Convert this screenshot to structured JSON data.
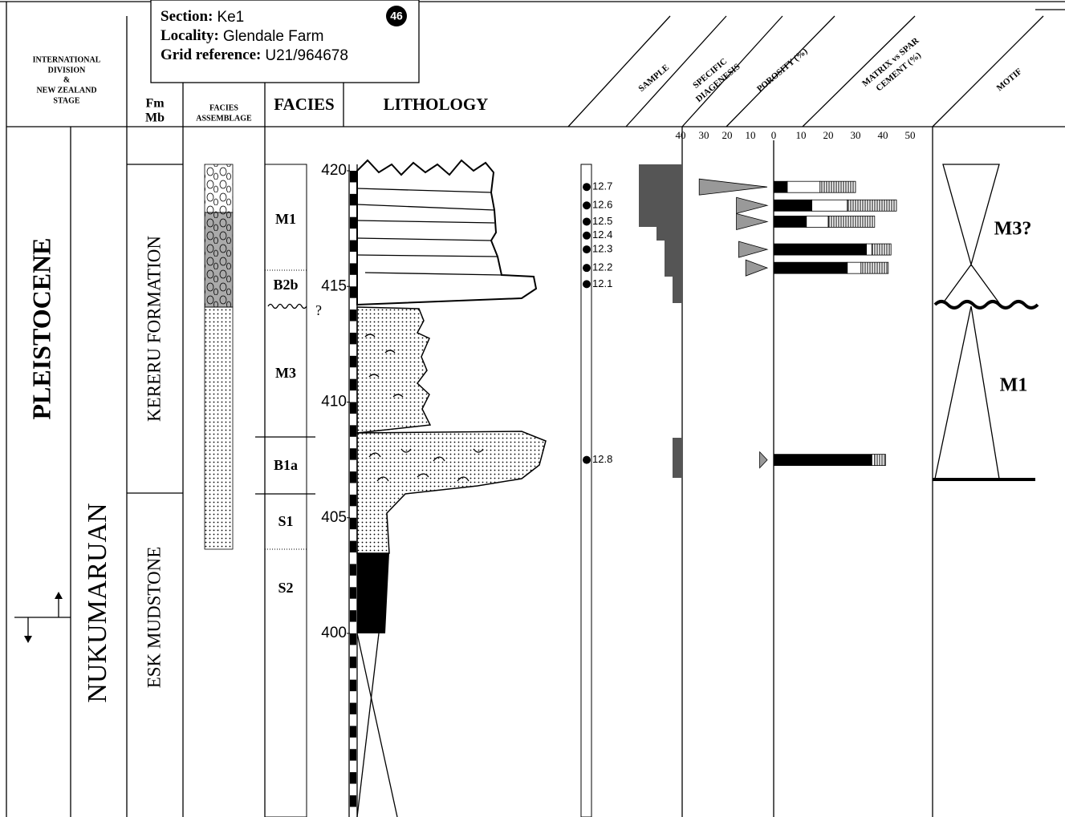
{
  "header": {
    "section": {
      "label": "Section:",
      "value": "Ke1"
    },
    "locality": {
      "label": "Locality:",
      "value": "Glendale Farm"
    },
    "grid_reference": {
      "label": "Grid reference:",
      "value": "U21/964678"
    },
    "number": "46"
  },
  "columns": {
    "division": [
      "INTERNATIONAL",
      "DIVISION",
      "&",
      "NEW ZEALAND",
      "STAGE"
    ],
    "fm_mb": [
      "Fm",
      "Mb"
    ],
    "facies_assemblage": [
      "FACIES",
      "ASSEMBLAGE"
    ],
    "facies": "FACIES",
    "lithology": "LITHOLOGY",
    "sample": "SAMPLE",
    "diagenesis": [
      "SPECIFIC",
      "DIAGENESIS"
    ],
    "porosity": "POROSITY (%)",
    "matrix": [
      "MATRIX vs SPAR",
      "CEMENT (%)"
    ],
    "motif": "MOTIF"
  },
  "units": {
    "series": "PLEISTOCENE",
    "stage": "NUKUMARUAN",
    "formations": [
      "KERERU FORMATION",
      "ESK MUDSTONE"
    ]
  },
  "facies": [
    "M1",
    "B2b",
    "M3",
    "B1a",
    "S1",
    "S2"
  ],
  "facies_query": "?",
  "depth_ticks": [
    420,
    415,
    410,
    405,
    400
  ],
  "porosity_ticks": [
    40,
    30,
    20,
    10,
    0
  ],
  "matrix_ticks": [
    10,
    20,
    30,
    40,
    50
  ],
  "samples": [
    {
      "label": "12.7",
      "depth": 419.3,
      "porosity": 32,
      "matrix": 5,
      "open": 12,
      "spar": 13
    },
    {
      "label": "12.6",
      "depth": 418.5,
      "porosity": 16,
      "matrix": 14,
      "open": 13,
      "spar": 18
    },
    {
      "label": "12.5",
      "depth": 417.8,
      "porosity": 16,
      "matrix": 12,
      "open": 8,
      "spar": 17
    },
    {
      "label": "12.4",
      "depth": 417.2,
      "porosity": null,
      "matrix": null,
      "open": null,
      "spar": null
    },
    {
      "label": "12.3",
      "depth": 416.6,
      "porosity": 15,
      "matrix": 34,
      "open": 2,
      "spar": 7
    },
    {
      "label": "12.2",
      "depth": 415.8,
      "porosity": 12,
      "matrix": 27,
      "open": 5,
      "spar": 10
    },
    {
      "label": "12.1",
      "depth": 415.1,
      "porosity": null,
      "matrix": null,
      "open": null,
      "spar": null
    },
    {
      "label": "12.8",
      "depth": 407.5,
      "porosity": 6,
      "matrix": 36,
      "open": 1,
      "spar": 4
    }
  ],
  "motifs": [
    "M3?",
    "M1"
  ]
}
